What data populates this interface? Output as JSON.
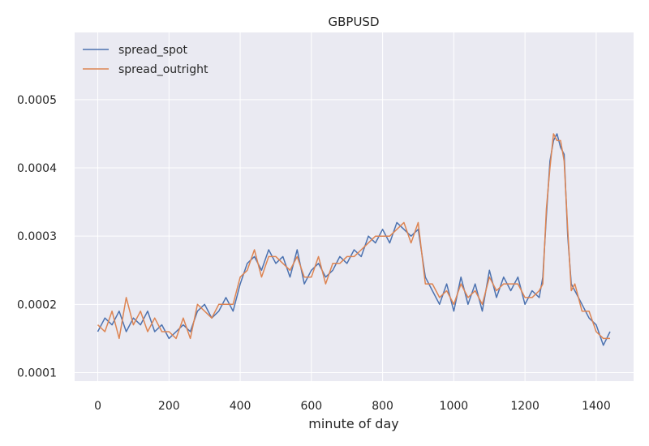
{
  "chart_data": {
    "type": "line",
    "title": "GBPUSD",
    "xlabel": "minute of day",
    "ylabel": "",
    "xlim": [
      -65,
      1505
    ],
    "ylim": [
      8.75e-05,
      0.0005985
    ],
    "x_ticks": [
      0,
      200,
      400,
      600,
      800,
      1000,
      1200,
      1400
    ],
    "x_tick_labels": [
      "0",
      "200",
      "400",
      "600",
      "800",
      "1000",
      "1200",
      "1400"
    ],
    "y_ticks": [
      0.0001,
      0.0002,
      0.0003,
      0.0004,
      0.0005
    ],
    "y_tick_labels": [
      "0.0001",
      "0.0002",
      "0.0003",
      "0.0004",
      "0.0005"
    ],
    "grid": true,
    "legend_position": "top-left",
    "x": [
      0,
      20,
      40,
      60,
      80,
      100,
      120,
      140,
      160,
      180,
      200,
      220,
      240,
      260,
      280,
      300,
      320,
      340,
      360,
      380,
      400,
      420,
      440,
      460,
      480,
      500,
      520,
      540,
      560,
      580,
      600,
      620,
      640,
      660,
      680,
      700,
      720,
      740,
      760,
      780,
      800,
      820,
      840,
      860,
      880,
      900,
      920,
      940,
      960,
      980,
      1000,
      1020,
      1040,
      1060,
      1080,
      1100,
      1120,
      1140,
      1160,
      1180,
      1200,
      1220,
      1240,
      1250,
      1260,
      1270,
      1280,
      1290,
      1300,
      1310,
      1320,
      1330,
      1340,
      1360,
      1380,
      1400,
      1420,
      1439
    ],
    "series": [
      {
        "name": "spread_spot",
        "color": "#4c72b0",
        "values": [
          0.00016,
          0.00018,
          0.00017,
          0.00019,
          0.00016,
          0.00018,
          0.00017,
          0.00019,
          0.00016,
          0.00017,
          0.00015,
          0.00016,
          0.00017,
          0.00016,
          0.00019,
          0.0002,
          0.00018,
          0.00019,
          0.00021,
          0.00019,
          0.00023,
          0.00026,
          0.00027,
          0.00025,
          0.00028,
          0.00026,
          0.00027,
          0.00024,
          0.00028,
          0.00023,
          0.00025,
          0.00026,
          0.00024,
          0.00025,
          0.00027,
          0.00026,
          0.00028,
          0.00027,
          0.0003,
          0.00029,
          0.00031,
          0.00029,
          0.00032,
          0.00031,
          0.0003,
          0.00031,
          0.00024,
          0.00022,
          0.0002,
          0.00023,
          0.00019,
          0.00024,
          0.0002,
          0.00023,
          0.00019,
          0.00025,
          0.00021,
          0.00024,
          0.00022,
          0.00024,
          0.0002,
          0.00022,
          0.00021,
          0.00024,
          0.00033,
          0.00041,
          0.00044,
          0.00045,
          0.00043,
          0.00042,
          0.0003,
          0.00023,
          0.00022,
          0.0002,
          0.00018,
          0.00017,
          0.00014,
          0.00016
        ]
      },
      {
        "name": "spread_outright",
        "color": "#dd8452",
        "values": [
          0.00017,
          0.00016,
          0.00019,
          0.00015,
          0.00021,
          0.00017,
          0.00019,
          0.00016,
          0.00018,
          0.00016,
          0.00016,
          0.00015,
          0.00018,
          0.00015,
          0.0002,
          0.00019,
          0.00018,
          0.0002,
          0.0002,
          0.0002,
          0.00024,
          0.00025,
          0.00028,
          0.00024,
          0.00027,
          0.00027,
          0.00026,
          0.00025,
          0.00027,
          0.00024,
          0.00024,
          0.00027,
          0.00023,
          0.00026,
          0.00026,
          0.00027,
          0.00027,
          0.00028,
          0.00029,
          0.0003,
          0.0003,
          0.0003,
          0.00031,
          0.00032,
          0.00029,
          0.00032,
          0.00023,
          0.00023,
          0.00021,
          0.00022,
          0.0002,
          0.00023,
          0.00021,
          0.00022,
          0.0002,
          0.00024,
          0.00022,
          0.00023,
          0.00023,
          0.00023,
          0.00021,
          0.00021,
          0.00022,
          0.00023,
          0.00034,
          0.0004,
          0.00045,
          0.00044,
          0.00044,
          0.00041,
          0.00031,
          0.00022,
          0.00023,
          0.00019,
          0.00019,
          0.00016,
          0.00015,
          0.00015
        ]
      }
    ]
  }
}
